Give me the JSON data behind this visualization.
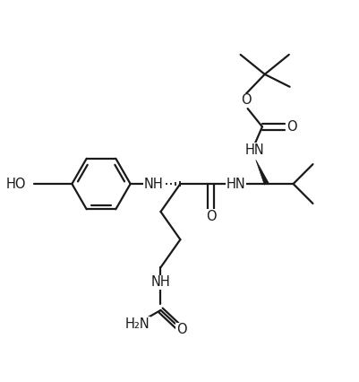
{
  "background_color": "#ffffff",
  "line_color": "#1a1a1a",
  "line_width": 1.6,
  "font_size": 10.5,
  "figsize": [
    4.01,
    4.26
  ],
  "dpi": 100,
  "xlim": [
    0,
    10
  ],
  "ylim": [
    0,
    10.6
  ]
}
